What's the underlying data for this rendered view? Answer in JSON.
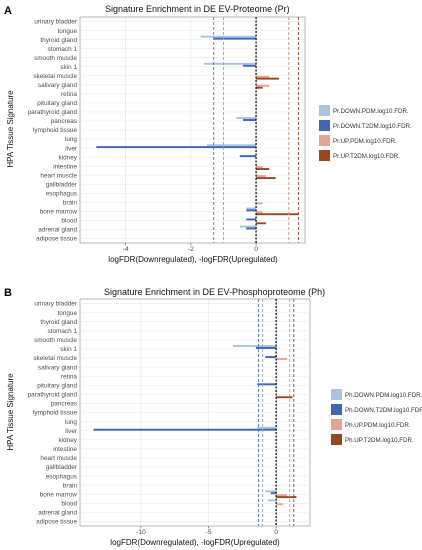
{
  "chart_data": [
    {
      "type": "bar",
      "orientation": "horizontal",
      "panel_letter": "A",
      "title": "Signature Enrichment in DE EV-Proteome (Pr)",
      "xlabel": "logFDR(Downregulated), -logFDR(Upregulated)",
      "ylabel": "HPA Tissue Signature",
      "xlim": [
        -5.4,
        1.5
      ],
      "xticks": [
        -4,
        -2,
        0
      ],
      "grid": true,
      "legend_position": "right",
      "reference_lines": [
        -1.3,
        -1.0,
        1.0,
        1.3
      ],
      "categories": [
        "urinary bladder",
        "tongue",
        "thyroid gland",
        "stomach 1",
        "smooth muscle",
        "skin 1",
        "skeletal muscle",
        "salivary gland",
        "retina",
        "pituitary gland",
        "parathyroid gland",
        "pancreas",
        "lymphoid tissue",
        "lung",
        "liver",
        "kidney",
        "intestine",
        "heart muscle",
        "gallbladder",
        "esophagus",
        "brain",
        "bone marrow",
        "blood",
        "adrenal gland",
        "adipose tissue"
      ],
      "series": [
        {
          "name": "Pr.DOWN.PDM.log10.FDR.",
          "color": "#a9c4e2",
          "values": [
            0,
            0,
            -1.7,
            0,
            0,
            -1.6,
            0,
            0,
            0,
            0,
            0,
            -0.6,
            0,
            0,
            -1.5,
            0,
            0,
            0,
            0,
            0,
            0,
            -0.3,
            0,
            -0.5,
            0
          ]
        },
        {
          "name": "Pr.DOWN.T2DM.log10.FDR.",
          "color": "#3f68b4",
          "values": [
            0,
            0,
            -1.3,
            0,
            0,
            -0.4,
            0,
            0,
            0,
            0,
            0,
            -0.4,
            0,
            0,
            -4.9,
            -0.5,
            0,
            0,
            0,
            0,
            0,
            -0.3,
            -0.3,
            -0.3,
            0
          ]
        },
        {
          "name": "Pr.UP.PDM.log10.FDR.",
          "color": "#e6a590",
          "values": [
            0,
            0,
            0,
            0,
            0,
            0,
            0.4,
            0.4,
            0,
            0,
            0,
            0,
            0,
            0,
            0,
            0,
            0.2,
            0.3,
            0,
            0,
            0.2,
            0.2,
            0,
            0,
            0
          ]
        },
        {
          "name": "Pr.UP.T2DM.log10.FDR.",
          "color": "#9a4621",
          "values": [
            0,
            0,
            0,
            0,
            0,
            0,
            0.7,
            0.2,
            0,
            0,
            0,
            0,
            0,
            0,
            0,
            0,
            0.4,
            0.6,
            0,
            0,
            0,
            1.3,
            0.3,
            0,
            0
          ]
        }
      ]
    },
    {
      "type": "bar",
      "orientation": "horizontal",
      "panel_letter": "B",
      "title": "Signature Enrichment in DE EV-Phosphoproteome (Ph)",
      "xlabel": "logFDR(Downregulated), -logFDR(Upregulated)",
      "ylabel": "HPA Tissue Signature",
      "xlim": [
        -14.5,
        2.5
      ],
      "xticks": [
        -10,
        -5,
        0
      ],
      "grid": true,
      "legend_position": "right",
      "reference_lines": [
        -1.3,
        -1.0,
        1.0,
        1.3
      ],
      "categories": [
        "urinary bladder",
        "tongue",
        "thyroid gland",
        "stomach 1",
        "smooth muscle",
        "skin 1",
        "skeletal muscle",
        "salivary gland",
        "retina",
        "pituitary gland",
        "parathyroid gland",
        "pancreas",
        "lymphoid tissue",
        "lung",
        "liver",
        "kidney",
        "intestine",
        "heart muscle",
        "gallbladder",
        "esophagus",
        "brain",
        "bone marrow",
        "blood",
        "adrenal gland",
        "adipose tissue"
      ],
      "series": [
        {
          "name": "Ph.DOWN.PDM.log10.FDR.",
          "color": "#a9c4e2",
          "values": [
            0,
            0,
            0,
            0,
            0,
            -3.2,
            0,
            0,
            0,
            0,
            0,
            0,
            0,
            0,
            -1.4,
            0,
            0,
            0,
            0,
            0,
            0,
            -0.8,
            -0.6,
            0,
            0
          ]
        },
        {
          "name": "Ph.DOWN.T2DM.log10.FDR.",
          "color": "#3f68b4",
          "values": [
            0,
            0,
            0,
            0,
            0,
            -1.5,
            -0.8,
            0,
            0,
            -1.4,
            0,
            0,
            0,
            0,
            -13.5,
            0,
            0,
            0,
            0,
            0,
            0,
            -0.4,
            0,
            0,
            0
          ]
        },
        {
          "name": "Ph.UP.PDM.log10.FDR.",
          "color": "#e6a590",
          "values": [
            0,
            0,
            0,
            0,
            0,
            0,
            0.8,
            0,
            0,
            0,
            0,
            0,
            0,
            0,
            0,
            0,
            0,
            0,
            0,
            0,
            0,
            0.8,
            0.5,
            0,
            0
          ]
        },
        {
          "name": "Ph.UP.T2DM.log10.FDR.",
          "color": "#9a4621",
          "values": [
            0,
            0,
            0,
            0,
            0,
            0,
            0,
            0,
            0,
            0,
            1.2,
            0,
            0,
            0,
            0,
            0,
            0,
            0,
            0,
            0,
            0,
            1.5,
            0,
            0,
            0
          ]
        }
      ]
    }
  ]
}
